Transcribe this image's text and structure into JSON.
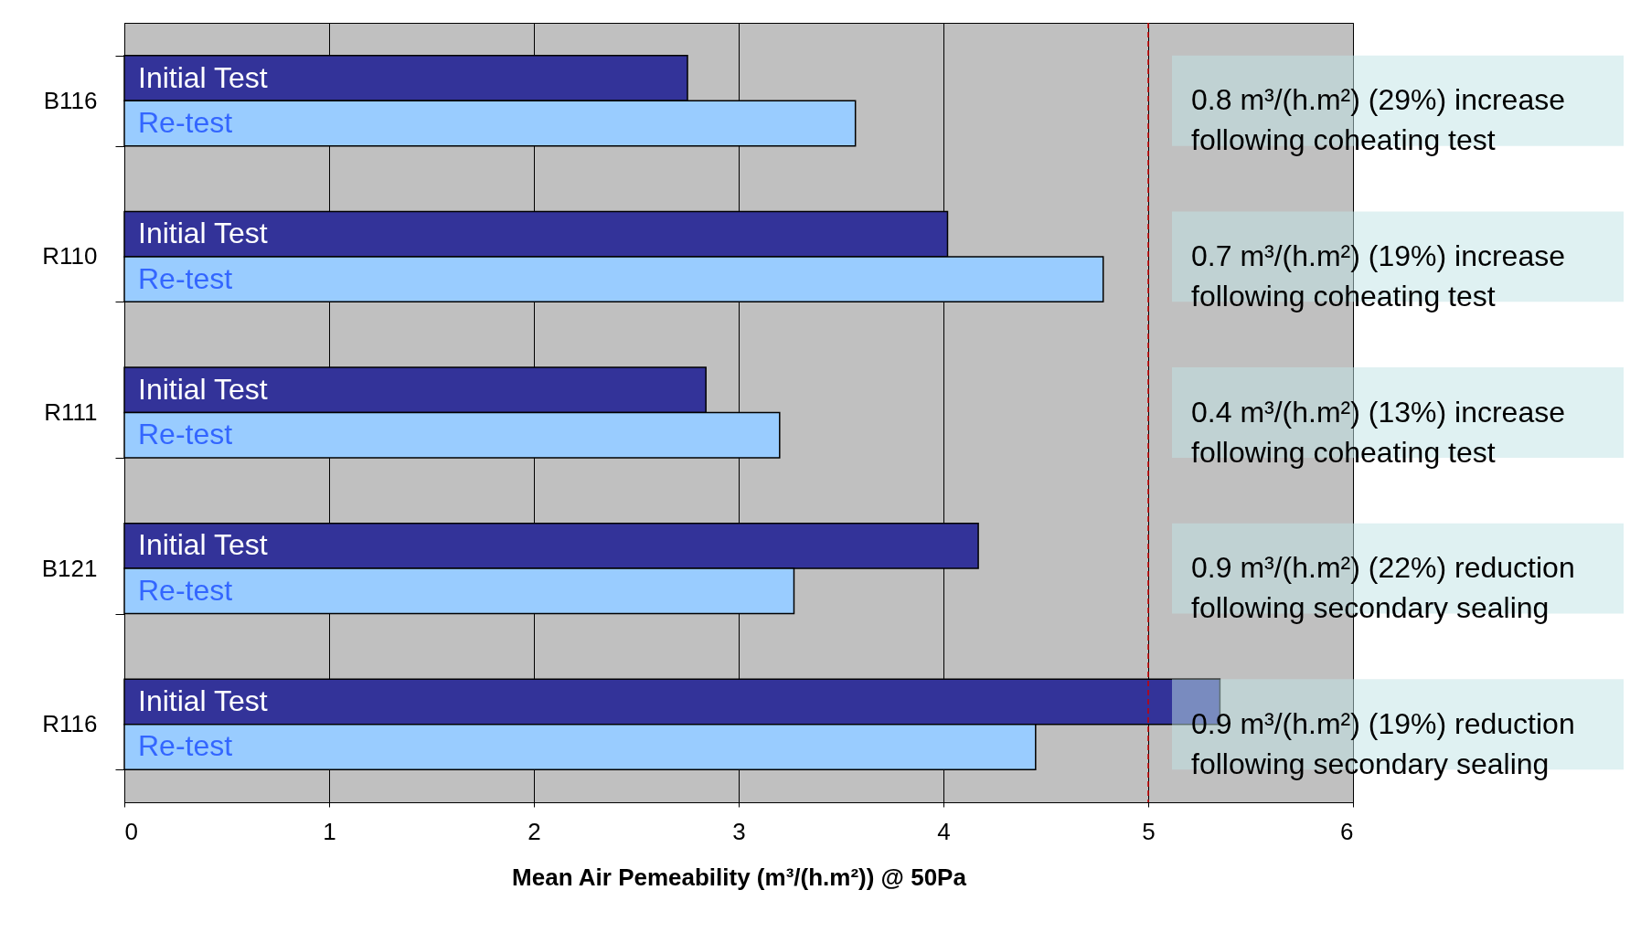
{
  "chart_data": {
    "type": "bar",
    "orientation": "horizontal",
    "categories": [
      "B116",
      "R110",
      "R111",
      "B121",
      "R116"
    ],
    "series": [
      {
        "name": "Initial Test",
        "color": "#333399",
        "values": [
          2.75,
          4.02,
          2.84,
          4.17,
          5.35
        ]
      },
      {
        "name": "Re-test",
        "color": "#99ccff",
        "values": [
          3.57,
          4.78,
          3.2,
          3.27,
          4.45
        ]
      }
    ],
    "xlabel": "Mean Air Pemeability (m³/(h.m²)) @ 50Pa",
    "xlim": [
      0,
      6
    ],
    "xticks": [
      0,
      1,
      2,
      3,
      4,
      5,
      6
    ],
    "grid": "x",
    "legend": false,
    "ref_lines": [
      {
        "axis": "x",
        "value": 5,
        "color": "#cc0000",
        "line_style": "dashed"
      }
    ],
    "annotations": [
      "0.8 m³/(h.m²) (29%) increase\nfollowing coheating test",
      "0.7 m³/(h.m²) (19%) increase\nfollowing coheating test",
      "0.4 m³/(h.m²) (13%) increase\nfollowing coheating test",
      "0.9 m³/(h.m²) (22%) reduction\nfollowing secondary sealing",
      "0.9 m³/(h.m²) (19%) reduction\nfollowing secondary sealing"
    ]
  }
}
